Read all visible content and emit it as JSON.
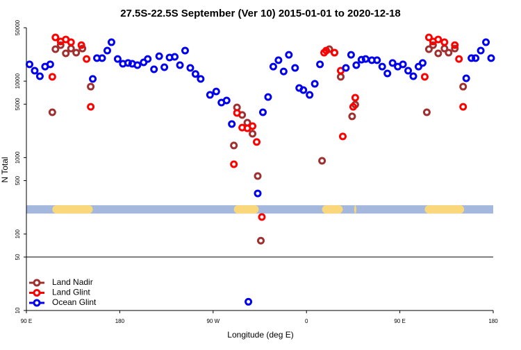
{
  "chart_data": {
    "type": "scatter",
    "title": "27.5S-22.5S September (Ver 10)   2015-01-01 to 2020-12-18",
    "xlabel": "Longitude (deg E)",
    "ylabel": "N Total",
    "log_y": true,
    "xlim": [
      90,
      540
    ],
    "ylim": [
      10,
      50000
    ],
    "xticks": [
      {
        "value": 90,
        "label": "90 E"
      },
      {
        "value": 180,
        "label": "180"
      },
      {
        "value": 270,
        "label": "90 W"
      },
      {
        "value": 360,
        "label": "0"
      },
      {
        "value": 450,
        "label": "90 E"
      },
      {
        "value": 540,
        "label": "180"
      }
    ],
    "yticks": [
      10,
      50,
      100,
      500,
      1000,
      5000,
      10000,
      50000
    ],
    "hline": 50,
    "legend": "lower left",
    "land_strip": {
      "y": 210,
      "ocean_color": "#a3b8dc",
      "land_color": "#fad77a",
      "land": [
        [
          115,
          154
        ],
        [
          290,
          314
        ],
        [
          375,
          395
        ],
        [
          406,
          407
        ],
        [
          474,
          512
        ]
      ]
    },
    "series": [
      {
        "name": "Land Nadir",
        "color": "#a03030",
        "x": [
          115,
          118,
          123,
          128,
          133,
          138,
          144,
          152,
          290,
          293,
          298,
          303,
          308,
          313,
          316,
          375,
          382,
          387,
          393,
          404,
          407,
          476,
          478,
          482,
          487,
          493,
          497,
          503,
          511
        ],
        "values": [
          3920,
          26200,
          29600,
          23100,
          26700,
          23600,
          26700,
          8470,
          1440,
          4530,
          3610,
          2860,
          2050,
          574,
          82,
          908,
          26200,
          23600,
          11400,
          3460,
          4930,
          3920,
          26200,
          29600,
          23100,
          26700,
          23600,
          26700,
          8470
        ]
      },
      {
        "name": "Land Glint",
        "color": "#ff0000",
        "x": [
          115,
          118,
          123,
          128,
          133,
          143,
          148,
          152,
          290,
          293,
          298,
          303,
          308,
          312,
          317,
          377,
          379,
          387,
          393,
          395,
          405,
          407,
          474,
          478,
          482,
          487,
          493,
          503,
          507,
          511
        ],
        "values": [
          11400,
          37300,
          33000,
          35100,
          32300,
          29600,
          19500,
          4620,
          818,
          3840,
          2470,
          2420,
          2580,
          1600,
          167,
          23600,
          25100,
          23600,
          13700,
          1890,
          4620,
          6070,
          11400,
          37300,
          33000,
          35100,
          32300,
          29600,
          19500,
          4620
        ]
      },
      {
        "name": "Ocean Glint",
        "color": "#0000ee",
        "x": [
          93,
          98,
          103,
          108,
          113,
          154,
          158,
          163,
          168,
          172,
          178,
          183,
          188,
          192,
          197,
          203,
          207,
          213,
          218,
          223,
          228,
          233,
          238,
          243,
          248,
          253,
          258,
          267,
          273,
          278,
          283,
          288,
          304,
          313,
          318,
          323,
          328,
          333,
          338,
          343,
          349,
          353,
          357,
          363,
          368,
          373,
          398,
          403,
          408,
          413,
          417,
          423,
          428,
          433,
          438,
          443,
          448,
          453,
          458,
          463,
          468,
          472,
          514,
          519,
          523,
          528,
          533,
          538
        ],
        "values": [
          16600,
          13700,
          11600,
          15500,
          16600,
          10700,
          20000,
          20000,
          25100,
          32300,
          19500,
          16900,
          17300,
          16900,
          16200,
          17600,
          19500,
          14300,
          21200,
          15200,
          20400,
          20800,
          16200,
          25100,
          14900,
          12400,
          10700,
          6610,
          7330,
          5250,
          5580,
          2750,
          13,
          340,
          3920,
          6200,
          15500,
          18800,
          13400,
          22100,
          14900,
          8130,
          7640,
          6610,
          9230,
          16600,
          14900,
          22100,
          16200,
          19100,
          19500,
          18800,
          18800,
          15500,
          12600,
          17300,
          15500,
          16600,
          13700,
          11600,
          15500,
          17300,
          10900,
          20000,
          20000,
          25100,
          32300,
          20000
        ]
      }
    ]
  }
}
